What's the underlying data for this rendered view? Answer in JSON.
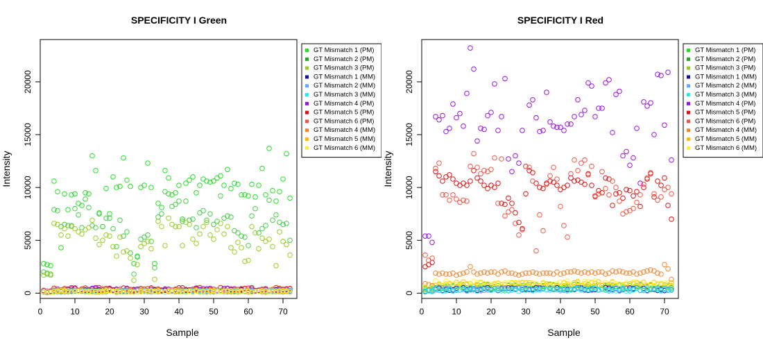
{
  "charts": [
    {
      "title": "SPECIFICITY I Green",
      "xlabel": "Sample",
      "ylabel": "Intensity"
    },
    {
      "title": "SPECIFICITY I Red",
      "xlabel": "Sample",
      "ylabel": "Intensity"
    }
  ],
  "chart_data": [
    {
      "type": "scatter",
      "title": "SPECIFICITY I Green",
      "xlabel": "Sample",
      "ylabel": "Intensity",
      "xlim": [
        0,
        74
      ],
      "ylim": [
        -500,
        24000
      ],
      "x_ticks": [
        0,
        10,
        20,
        30,
        40,
        50,
        60,
        70
      ],
      "y_ticks": [
        0,
        5000,
        10000,
        15000,
        20000
      ],
      "marker": "open circle",
      "legend_position": "top-right",
      "legend": [
        {
          "name": "GT Mismatch 1 (PM)",
          "color": "#22dd22"
        },
        {
          "name": "GT Mismatch 2 (PM)",
          "color": "#22aa22"
        },
        {
          "name": "GT Mismatch 3 (PM)",
          "color": "#99cc22"
        },
        {
          "name": "GT Mismatch 1 (MM)",
          "color": "#1111aa"
        },
        {
          "name": "GT Mismatch 2 (MM)",
          "color": "#66aaff"
        },
        {
          "name": "GT Mismatch 3 (MM)",
          "color": "#22eeee"
        },
        {
          "name": "GT Mismatch 4 (PM)",
          "color": "#9911dd"
        },
        {
          "name": "GT Mismatch 5 (PM)",
          "color": "#dd1111"
        },
        {
          "name": "GT Mismatch 6 (PM)",
          "color": "#ee5544"
        },
        {
          "name": "GT Mismatch 4 (MM)",
          "color": "#ee8833"
        },
        {
          "name": "GT Mismatch 5 (MM)",
          "color": "#ffbb00"
        },
        {
          "name": "GT Mismatch 6 (MM)",
          "color": "#ffee33"
        }
      ],
      "series": [
        {
          "name": "GT Mismatch 1 (PM)",
          "color": "#22dd22",
          "values": [
            2800,
            2700,
            2600,
            10600,
            9600,
            4300,
            9400,
            7900,
            9300,
            9400,
            8500,
            8300,
            9500,
            9400,
            13000,
            11600,
            7500,
            6300,
            9900,
            7500,
            11000,
            10000,
            10100,
            12800,
            10700,
            10100,
            2800,
            3500,
            10000,
            10200,
            12300,
            10000,
            2800,
            8500,
            8100,
            11600,
            10900,
            9300,
            9500,
            10200,
            7000,
            10400,
            10700,
            11000,
            9500,
            10200,
            10800,
            10600,
            10500,
            10600,
            10900,
            11100,
            10200,
            11700,
            9900,
            10400,
            10300,
            9300,
            9300,
            9200,
            10300,
            9100,
            10200,
            11800,
            9300,
            13700,
            9700,
            8700,
            9600,
            10800,
            13200,
            9000
          ]
        },
        {
          "name": "GT Mismatch 2 (PM)",
          "color": "#44cc44",
          "values": [
            2000,
            1900,
            1800,
            7900,
            7800,
            6300,
            6500,
            6400,
            6400,
            8000,
            7400,
            6200,
            8900,
            8100,
            6400,
            6200,
            7600,
            6300,
            7100,
            7100,
            6100,
            4400,
            6900,
            5400,
            5800,
            3800,
            1800,
            3400,
            5100,
            5300,
            5500,
            4900,
            2400,
            7200,
            7500,
            9600,
            9400,
            8200,
            8400,
            8700,
            6800,
            8700,
            6900,
            7000,
            6200,
            7600,
            7800,
            6900,
            7500,
            6500,
            6800,
            9200,
            7100,
            7300,
            7200,
            5900,
            5700,
            5400,
            5300,
            4500,
            7300,
            8000,
            5700,
            6100,
            6400,
            8800,
            6900,
            7400,
            6700,
            6500,
            6600,
            5000
          ]
        },
        {
          "name": "GT Mismatch 3 (PM)",
          "color": "#99cc22",
          "values": [
            1700,
            1800,
            1700,
            6600,
            6500,
            5500,
            6100,
            5400,
            6300,
            6100,
            5800,
            5600,
            6000,
            6200,
            6900,
            5200,
            4600,
            5000,
            5500,
            5400,
            4400,
            3500,
            5300,
            3900,
            4000,
            3300,
            1200,
            2700,
            4400,
            4700,
            4900,
            4200,
            1300,
            6800,
            6300,
            4500,
            7100,
            6500,
            6300,
            6300,
            4500,
            6700,
            6500,
            5100,
            4700,
            5600,
            6300,
            6700,
            5500,
            5100,
            6000,
            6600,
            5600,
            6300,
            4300,
            3900,
            4800,
            4300,
            3000,
            3100,
            6300,
            5700,
            4200,
            5200,
            4900,
            5100,
            4400,
            2600,
            5800,
            4900,
            4600,
            3600
          ]
        },
        {
          "name": "GT Mismatch 5 (PM)",
          "color": "#dd1111",
          "base": 380,
          "jitter": 150
        },
        {
          "name": "GT Mismatch 6 (PM)",
          "color": "#ee5544",
          "base": 300,
          "jitter": 130
        },
        {
          "name": "GT Mismatch 4 (PM)",
          "color": "#9911dd",
          "base": 330,
          "jitter": 140
        },
        {
          "name": "GT Mismatch 4 (MM)",
          "color": "#ee8833",
          "base": 240,
          "jitter": 110
        },
        {
          "name": "GT Mismatch 1 (MM)",
          "color": "#1111aa",
          "base": 200,
          "jitter": 80
        },
        {
          "name": "GT Mismatch 2 (MM)",
          "color": "#66aaff",
          "base": 190,
          "jitter": 80
        },
        {
          "name": "GT Mismatch 3 (MM)",
          "color": "#22eeee",
          "base": 180,
          "jitter": 80
        },
        {
          "name": "GT Mismatch 5 (MM)",
          "color": "#ffbb00",
          "base": 170,
          "jitter": 90
        },
        {
          "name": "GT Mismatch 6 (MM)",
          "color": "#ffee33",
          "base": 150,
          "jitter": 80
        }
      ]
    },
    {
      "type": "scatter",
      "title": "SPECIFICITY I Red",
      "xlabel": "Sample",
      "ylabel": "Intensity",
      "xlim": [
        0,
        74
      ],
      "ylim": [
        -500,
        24000
      ],
      "x_ticks": [
        0,
        10,
        20,
        30,
        40,
        50,
        60,
        70
      ],
      "y_ticks": [
        0,
        5000,
        10000,
        15000,
        20000
      ],
      "marker": "open circle",
      "legend_position": "top-right",
      "legend": [
        {
          "name": "GT Mismatch 1 (PM)",
          "color": "#22dd22"
        },
        {
          "name": "GT Mismatch 2 (PM)",
          "color": "#22aa22"
        },
        {
          "name": "GT Mismatch 3 (PM)",
          "color": "#99cc22"
        },
        {
          "name": "GT Mismatch 1 (MM)",
          "color": "#1111aa"
        },
        {
          "name": "GT Mismatch 2 (MM)",
          "color": "#66aaff"
        },
        {
          "name": "GT Mismatch 3 (MM)",
          "color": "#22eeee"
        },
        {
          "name": "GT Mismatch 4 (PM)",
          "color": "#9911dd"
        },
        {
          "name": "GT Mismatch 5 (PM)",
          "color": "#dd1111"
        },
        {
          "name": "GT Mismatch 6 (PM)",
          "color": "#ee5544"
        },
        {
          "name": "GT Mismatch 4 (MM)",
          "color": "#ee8833"
        },
        {
          "name": "GT Mismatch 5 (MM)",
          "color": "#ffbb00"
        },
        {
          "name": "GT Mismatch 6 (MM)",
          "color": "#ffee33"
        }
      ],
      "series": [
        {
          "name": "GT Mismatch 4 (PM)",
          "color": "#9911dd",
          "values": [
            5400,
            5400,
            4800,
            16700,
            16400,
            16800,
            15300,
            15600,
            17900,
            16600,
            17000,
            15800,
            18900,
            23200,
            21200,
            14400,
            15600,
            15500,
            16800,
            17100,
            19800,
            15400,
            16700,
            20300,
            12700,
            11500,
            13000,
            12300,
            15400,
            12000,
            17800,
            18300,
            16600,
            15300,
            15400,
            19000,
            16200,
            15800,
            15700,
            15700,
            15400,
            16000,
            16000,
            16700,
            18300,
            16900,
            17300,
            19900,
            19600,
            16700,
            17500,
            17500,
            19900,
            20200,
            15200,
            18800,
            19100,
            13000,
            13400,
            12100,
            12800,
            15600,
            10400,
            18100,
            17700,
            18000,
            15000,
            20700,
            20600,
            15900,
            20900,
            12600
          ]
        },
        {
          "name": "GT Mismatch 5 (PM)",
          "color": "#dd1111",
          "values": [
            2500,
            2700,
            2900,
            11500,
            11100,
            10600,
            11000,
            11200,
            10800,
            10400,
            10200,
            10400,
            10200,
            10600,
            11600,
            10900,
            10600,
            10200,
            9900,
            10200,
            10000,
            10400,
            8500,
            8400,
            9000,
            8500,
            7600,
            6700,
            6100,
            9400,
            11600,
            11400,
            10400,
            10000,
            9900,
            10400,
            10600,
            10500,
            10200,
            9800,
            10000,
            10200,
            10900,
            10600,
            10700,
            10500,
            10300,
            11300,
            10200,
            9200,
            9700,
            9500,
            10900,
            10800,
            8300,
            9400,
            9500,
            9000,
            9800,
            9700,
            9200,
            9600,
            8200,
            10000,
            10800,
            11300,
            9100,
            10600,
            10200,
            10900,
            8300,
            7000
          ]
        },
        {
          "name": "GT Mismatch 6 (PM)",
          "color": "#ee5544",
          "values": [
            3600,
            3100,
            3300,
            11800,
            12300,
            9300,
            9300,
            8800,
            9300,
            8900,
            8600,
            8800,
            8700,
            12000,
            13200,
            11900,
            11300,
            11600,
            11500,
            11700,
            12800,
            8500,
            12700,
            7300,
            7700,
            7900,
            6600,
            5500,
            6000,
            12000,
            11900,
            10600,
            4000,
            7400,
            5900,
            10300,
            11100,
            11900,
            10800,
            8200,
            6400,
            5300,
            11300,
            12600,
            11600,
            12300,
            12600,
            11200,
            12000,
            9100,
            9400,
            11500,
            9900,
            9300,
            10600,
            10000,
            8700,
            7500,
            7700,
            7800,
            8000,
            8600,
            9300,
            10300,
            10900,
            11400,
            9400,
            8800,
            9100,
            9800,
            10000,
            9400
          ]
        },
        {
          "name": "GT Mismatch 4 (MM)",
          "color": "#ee8833",
          "values": [
            900,
            800,
            700,
            1900,
            1800,
            1900,
            1800,
            1800,
            1900,
            1700,
            1800,
            1900,
            2000,
            2500,
            2000,
            1800,
            1900,
            2000,
            1900,
            2000,
            2000,
            1800,
            2000,
            2100,
            1900,
            1900,
            1800,
            1700,
            1800,
            1900,
            1900,
            2000,
            1900,
            1800,
            1900,
            1900,
            1900,
            1800,
            2000,
            1800,
            1900,
            2000,
            2000,
            2100,
            2000,
            1900,
            2000,
            1900,
            2000,
            1900,
            2000,
            2000,
            1800,
            1900,
            2100,
            2000,
            2100,
            2000,
            1900,
            1900,
            2000,
            1800,
            1900,
            2000,
            2100,
            2200,
            2100,
            1900,
            1800,
            2700,
            2300,
            1300
          ]
        },
        {
          "name": "GT Mismatch 1 (PM)",
          "color": "#22dd22",
          "base": 600,
          "jitter": 220
        },
        {
          "name": "GT Mismatch 2 (PM)",
          "color": "#44cc44",
          "base": 540,
          "jitter": 220
        },
        {
          "name": "GT Mismatch 3 (PM)",
          "color": "#99cc22",
          "base": 640,
          "jitter": 230
        },
        {
          "name": "GT Mismatch 5 (MM)",
          "color": "#ffbb00",
          "base": 820,
          "jitter": 260
        },
        {
          "name": "GT Mismatch 6 (MM)",
          "color": "#ffee33",
          "base": 900,
          "jitter": 260
        },
        {
          "name": "GT Mismatch 1 (MM)",
          "color": "#1111aa",
          "base": 380,
          "jitter": 150
        },
        {
          "name": "GT Mismatch 2 (MM)",
          "color": "#66aaff",
          "base": 350,
          "jitter": 150
        },
        {
          "name": "GT Mismatch 3 (MM)",
          "color": "#22eeee",
          "base": 320,
          "jitter": 140
        }
      ]
    }
  ]
}
